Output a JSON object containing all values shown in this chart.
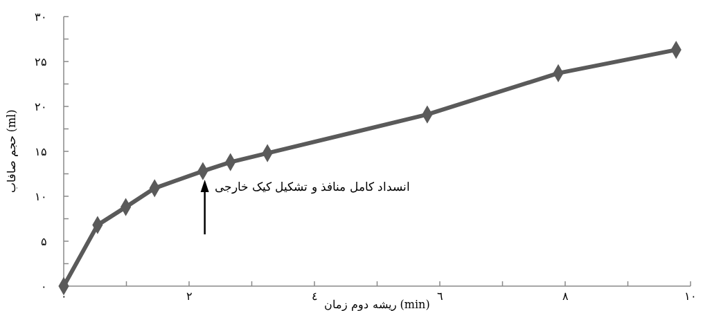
{
  "chart_data": {
    "type": "line",
    "xlabel": "ریشه دوم زمان (min)",
    "ylabel": "حجم صافاب (ml)",
    "x": [
      0,
      0.54,
      0.99,
      1.45,
      2.22,
      2.66,
      3.25,
      5.8,
      7.89,
      9.77
    ],
    "series": [
      {
        "color": "#5a5a5a",
        "values": [
          0,
          6.8,
          8.8,
          10.9,
          12.8,
          13.8,
          14.8,
          19.1,
          23.7,
          26.3
        ]
      }
    ],
    "xlim": [
      0,
      10
    ],
    "xticks": [
      {
        "value": 0,
        "label": "۰"
      },
      {
        "value": 1,
        "label": null
      },
      {
        "value": 2,
        "label": "۲"
      },
      {
        "value": 3,
        "label": null
      },
      {
        "value": 4,
        "label": "٤"
      },
      {
        "value": 5,
        "label": null
      },
      {
        "value": 6,
        "label": "٦"
      },
      {
        "value": 7,
        "label": null
      },
      {
        "value": 8,
        "label": "۸"
      },
      {
        "value": 9,
        "label": null
      },
      {
        "value": 10,
        "label": "۱۰"
      }
    ],
    "ylim": [
      0,
      30
    ],
    "yticks": [
      {
        "value": 0,
        "label": "۰"
      },
      {
        "value": 2.5,
        "label": null
      },
      {
        "value": 5,
        "label": "۵"
      },
      {
        "value": 7.5,
        "label": null
      },
      {
        "value": 10,
        "label": "۱۰"
      },
      {
        "value": 12.5,
        "label": null
      },
      {
        "value": 15,
        "label": "۱۵"
      },
      {
        "value": 17.5,
        "label": null
      },
      {
        "value": 20,
        "label": "۲۰"
      },
      {
        "value": 22.5,
        "label": null
      },
      {
        "value": 25,
        "label": "۲۵"
      },
      {
        "value": 27.5,
        "label": null
      },
      {
        "value": 30,
        "label": "۳۰"
      }
    ],
    "annotations": [
      {
        "text": "انسداد کامل منافذ و تشکیل کیک خارجی",
        "x": 2.25,
        "y": 12.3
      }
    ],
    "marker": "diamond",
    "grid": false
  }
}
